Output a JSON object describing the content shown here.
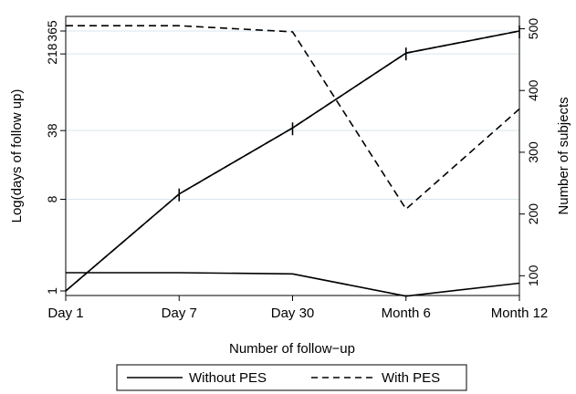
{
  "chart_data": {
    "type": "line",
    "xlabel": "Number of follow−up",
    "ylabel_left": "Log(days of follow up)",
    "ylabel_right": "Number of subjects",
    "categories": [
      "Day 1",
      "Day 7",
      "Day 30",
      "Month 6",
      "Month 12"
    ],
    "y_left_ticks": [
      {
        "label": "1",
        "log_value": 0
      },
      {
        "label": "8",
        "log_value": 2.08
      },
      {
        "label": "38",
        "log_value": 3.64
      },
      {
        "label": "218",
        "log_value": 5.38
      },
      {
        "label": "365",
        "log_value": 5.9
      }
    ],
    "y_left_range": [
      0,
      5.9
    ],
    "y_right_ticks": [
      100,
      200,
      300,
      400,
      500
    ],
    "y_right_range": [
      68,
      520
    ],
    "legend": {
      "position": "bottom",
      "entries": [
        "Without PES",
        "With PES"
      ]
    },
    "series": [
      {
        "name": "Without PES",
        "axis": "left",
        "style": "solid",
        "kind": "log_days",
        "values": [
          0,
          2.2,
          3.7,
          5.4,
          5.9
        ]
      },
      {
        "name": "With PES",
        "axis": "left",
        "style": "dashed",
        "kind": "log_days",
        "values": [
          0,
          2.2,
          3.7,
          5.4,
          5.9
        ]
      },
      {
        "name": "Without PES",
        "axis": "right",
        "style": "solid",
        "kind": "subjects",
        "values": [
          105,
          105,
          103,
          67,
          88
        ]
      },
      {
        "name": "With PES",
        "axis": "right",
        "style": "dashed",
        "kind": "subjects",
        "values": [
          505,
          505,
          495,
          208,
          370
        ]
      }
    ]
  }
}
